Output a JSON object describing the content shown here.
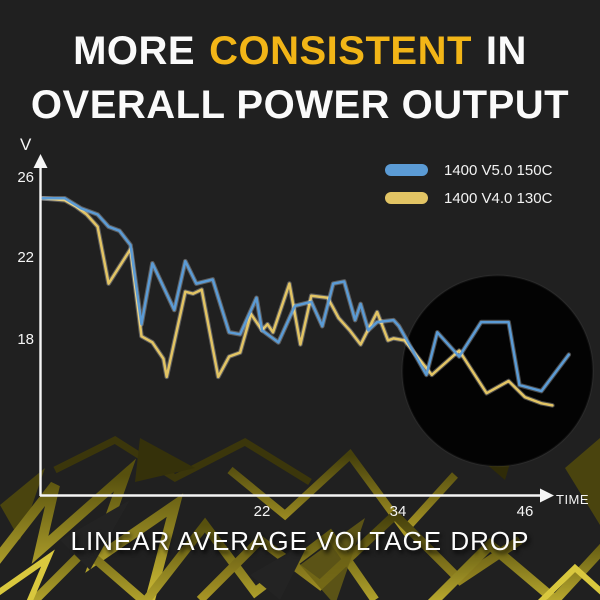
{
  "title": {
    "part1": "MORE",
    "part2": "CONSISTENT",
    "part3": "IN",
    "line2": "OVERALL POWER OUTPUT",
    "accent_color": "#f2b517"
  },
  "caption": "LINEAR AVERAGE VOLTAGE DROP",
  "axes": {
    "y_unit": "V",
    "x_unit": "TIME"
  },
  "chart_data": {
    "type": "line",
    "title": "MORE CONSISTENT IN OVERALL POWER OUTPUT",
    "subtitle": "LINEAR AVERAGE VOLTAGE DROP",
    "xlabel": "TIME",
    "ylabel": "V",
    "x_ticks": [
      22,
      34,
      46
    ],
    "y_ticks": [
      26,
      22,
      18
    ],
    "x_range": [
      2,
      50
    ],
    "y_range": [
      14,
      27
    ],
    "grid": false,
    "legend_position": "top-right",
    "series": [
      {
        "name": "1400 V5.0 150C",
        "color": "#5b9bd5",
        "x": [
          2,
          4,
          5.5,
          7,
          8,
          9,
          10,
          11,
          12,
          14,
          15,
          16,
          17.5,
          19,
          20,
          21.5,
          22,
          23.5,
          25,
          26.5,
          27.5,
          28.5,
          29.5,
          30.5,
          31,
          31.7,
          32.5,
          34,
          34.5,
          37,
          38,
          40,
          42,
          44.5,
          45.5,
          47.5,
          50
        ],
        "values": [
          25.0,
          25.0,
          24.5,
          24.2,
          23.6,
          23.4,
          22.7,
          18.8,
          21.8,
          19.5,
          21.9,
          20.8,
          21.0,
          18.4,
          18.3,
          20.1,
          18.5,
          17.9,
          19.7,
          19.9,
          18.7,
          20.8,
          20.9,
          19.0,
          19.8,
          18.5,
          18.9,
          19.0,
          18.7,
          16.3,
          18.4,
          17.2,
          18.9,
          18.9,
          15.8,
          15.5,
          17.3
        ]
      },
      {
        "name": "1400 V4.0 130C",
        "color": "#e2c464",
        "x": [
          2,
          4,
          5,
          6,
          7,
          8,
          10,
          11,
          12,
          13,
          13.3,
          15,
          15.7,
          16.5,
          18,
          19,
          20,
          21,
          22,
          22.5,
          23,
          24.5,
          25.5,
          26.5,
          28,
          28.5,
          29,
          30,
          31,
          32.5,
          33.5,
          34,
          35,
          37.5,
          40,
          42.5,
          44.5,
          46,
          47.5,
          48.5
        ],
        "values": [
          25.0,
          24.9,
          24.6,
          24.2,
          23.6,
          20.8,
          22.5,
          18.2,
          17.9,
          17.1,
          16.2,
          20.4,
          20.3,
          20.5,
          16.2,
          17.2,
          17.4,
          19.3,
          18.5,
          18.8,
          18.4,
          20.8,
          17.8,
          20.2,
          20.1,
          19.6,
          19.1,
          18.5,
          17.8,
          19.4,
          18.0,
          18.1,
          18.0,
          16.3,
          17.5,
          15.4,
          16.0,
          15.2,
          14.9,
          14.8
        ]
      }
    ],
    "annotations": [
      {
        "type": "circle-highlight",
        "x_center": 43.5,
        "y_center": 16.5,
        "radius_x_units": 8.7
      }
    ]
  }
}
